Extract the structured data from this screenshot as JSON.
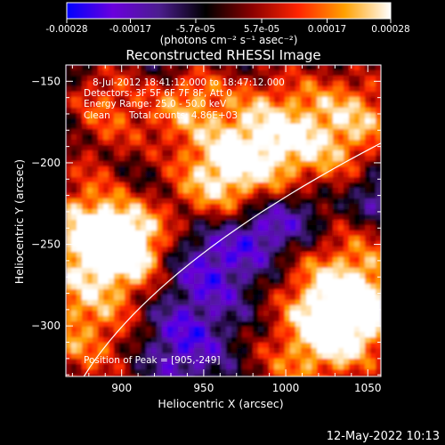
{
  "chart_data": {
    "type": "heatmap",
    "title": "Reconstructed RHESSI Image",
    "xlabel": "Heliocentric X (arcsec)",
    "ylabel": "Heliocentric Y (arcsec)",
    "xlim": [
      866,
      1058
    ],
    "ylim": [
      -331,
      -140
    ],
    "x_ticks": [
      900,
      950,
      1000,
      1050
    ],
    "y_ticks": [
      -150,
      -200,
      -250,
      -300
    ],
    "colorbar": {
      "range": [
        -0.00028,
        0.00028
      ],
      "ticks": [
        "-0.00028",
        "-0.00017",
        "-5.7e-05",
        "5.7e-05",
        "0.00017",
        "0.00028"
      ],
      "tick_values": [
        -0.00028,
        -0.00017,
        -5.7e-05,
        5.7e-05,
        0.00017,
        0.00028
      ],
      "unit_label": "(photons cm⁻² s⁻¹ asec⁻²)",
      "colormap": [
        "#0000ff",
        "#6a00dd",
        "#4b1d8e",
        "#000000",
        "#8a0000",
        "#ff2400",
        "#ffa000",
        "#ffffff"
      ]
    },
    "annotations": {
      "time": "8-Jul-2012 18:41:12.000 to 18:47:12.000",
      "detectors": "Detectors: 3F 5F 6F 7F 8F, Att 0",
      "energy": "Energy Range: 25.0 - 50.0 keV",
      "method": "Clean",
      "counts": "Total counts: 4.86E+03",
      "peak": "Position of Peak = [905,-249]"
    },
    "peak_position": [
      905,
      -249
    ],
    "limb_curve": "white solar limb line",
    "footer_date": "12-May-2022 10:13"
  }
}
